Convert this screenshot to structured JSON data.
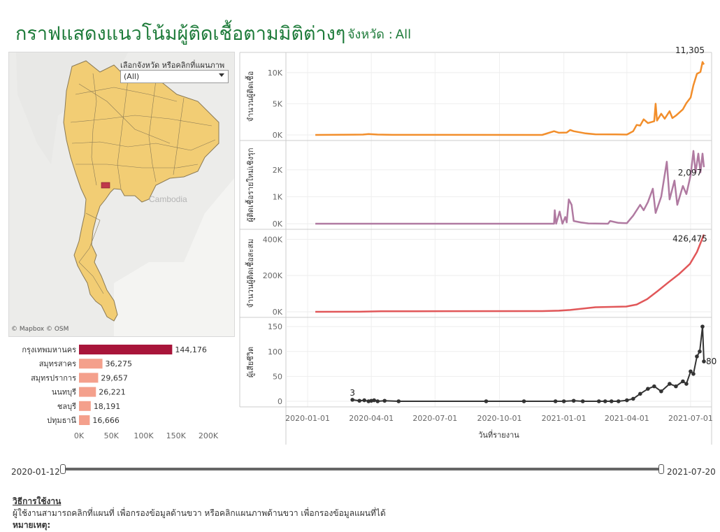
{
  "header": {
    "title": "กราฟแสดงแนวโน้มผู้ติดเชื้อตามมิติต่างๆ",
    "province_label": "จังหวัด :",
    "province_value": "All"
  },
  "map": {
    "filter_label": "เลือกจังหวัด หรือคลิกที่แผนภาพ",
    "filter_value": "(All)",
    "country_label": "Cambodia",
    "attribution": "© Mapbox  © OSM",
    "fill_color": "#f2cd74",
    "highlight_color": "#c0394b"
  },
  "colors": {
    "line_cases": "#f28e2b",
    "line_walkin": "#b07aa1",
    "line_cumulative": "#e15759",
    "line_deaths": "#333333",
    "bar_top": "#a8153a",
    "bar_other": "#f4a08c"
  },
  "chart_data": [
    {
      "type": "bar",
      "orientation": "horizontal",
      "categories": [
        "กรุงเทพมหานคร",
        "สมุทรสาคร",
        "สมุทรปราการ",
        "นนทบุรี",
        "ชลบุรี",
        "ปทุมธานี"
      ],
      "values": [
        144176,
        36275,
        29657,
        26221,
        18191,
        16666
      ],
      "value_labels": [
        "144,176",
        "36,275",
        "29,657",
        "26,221",
        "18,191",
        "16,666"
      ],
      "xlim": [
        0,
        200000
      ],
      "x_ticks": [
        0,
        50000,
        100000,
        150000,
        200000
      ],
      "x_tick_labels": [
        "0K",
        "50K",
        "100K",
        "150K",
        "200K"
      ]
    },
    {
      "type": "line",
      "ylabel": "จำนวนผู้ติดเชื้อ",
      "ylim": [
        0,
        12000
      ],
      "y_ticks": [
        0,
        5000,
        10000
      ],
      "y_tick_labels": [
        "0K",
        "5K",
        "10K"
      ],
      "end_label": "11,305",
      "points": [
        [
          "2020-01-12",
          0
        ],
        [
          "2020-03-20",
          60
        ],
        [
          "2020-03-28",
          140
        ],
        [
          "2020-04-10",
          60
        ],
        [
          "2020-05-01",
          10
        ],
        [
          "2020-12-01",
          5
        ],
        [
          "2020-12-18",
          600
        ],
        [
          "2020-12-25",
          350
        ],
        [
          "2021-01-05",
          380
        ],
        [
          "2021-01-10",
          800
        ],
        [
          "2021-01-15",
          600
        ],
        [
          "2021-02-01",
          250
        ],
        [
          "2021-02-15",
          100
        ],
        [
          "2021-03-15",
          80
        ],
        [
          "2021-04-01",
          60
        ],
        [
          "2021-04-10",
          600
        ],
        [
          "2021-04-15",
          1600
        ],
        [
          "2021-04-20",
          1500
        ],
        [
          "2021-04-25",
          2500
        ],
        [
          "2021-05-01",
          1900
        ],
        [
          "2021-05-10",
          2200
        ],
        [
          "2021-05-12",
          5000
        ],
        [
          "2021-05-14",
          2300
        ],
        [
          "2021-05-20",
          3400
        ],
        [
          "2021-05-25",
          2600
        ],
        [
          "2021-06-01",
          3800
        ],
        [
          "2021-06-05",
          2700
        ],
        [
          "2021-06-10",
          3100
        ],
        [
          "2021-06-20",
          4100
        ],
        [
          "2021-06-25",
          5100
        ],
        [
          "2021-07-01",
          6000
        ],
        [
          "2021-07-05",
          8000
        ],
        [
          "2021-07-10",
          9800
        ],
        [
          "2021-07-15",
          10100
        ],
        [
          "2021-07-18",
          11700
        ],
        [
          "2021-07-20",
          11305
        ]
      ]
    },
    {
      "type": "line",
      "ylabel": "ผู้ติดเชื้อรายใหม่เชิงรุก",
      "ylim": [
        0,
        2800
      ],
      "y_ticks": [
        0,
        1000,
        2000
      ],
      "y_tick_labels": [
        "0K",
        "1K",
        "2K"
      ],
      "end_label": "2,097",
      "points": [
        [
          "2020-01-12",
          0
        ],
        [
          "2020-12-18",
          0
        ],
        [
          "2020-12-19",
          500
        ],
        [
          "2020-12-21",
          0
        ],
        [
          "2020-12-26",
          450
        ],
        [
          "2020-12-30",
          0
        ],
        [
          "2021-01-03",
          250
        ],
        [
          "2021-01-05",
          50
        ],
        [
          "2021-01-08",
          900
        ],
        [
          "2021-01-12",
          700
        ],
        [
          "2021-01-15",
          100
        ],
        [
          "2021-01-25",
          50
        ],
        [
          "2021-02-05",
          10
        ],
        [
          "2021-03-05",
          0
        ],
        [
          "2021-03-08",
          100
        ],
        [
          "2021-03-20",
          30
        ],
        [
          "2021-04-01",
          20
        ],
        [
          "2021-04-10",
          300
        ],
        [
          "2021-04-20",
          700
        ],
        [
          "2021-04-25",
          500
        ],
        [
          "2021-05-01",
          800
        ],
        [
          "2021-05-08",
          1300
        ],
        [
          "2021-05-12",
          400
        ],
        [
          "2021-05-20",
          1000
        ],
        [
          "2021-05-28",
          2300
        ],
        [
          "2021-06-01",
          900
        ],
        [
          "2021-06-08",
          1600
        ],
        [
          "2021-06-12",
          700
        ],
        [
          "2021-06-20",
          1400
        ],
        [
          "2021-06-25",
          1100
        ],
        [
          "2021-07-01",
          1800
        ],
        [
          "2021-07-05",
          2700
        ],
        [
          "2021-07-08",
          1900
        ],
        [
          "2021-07-12",
          2600
        ],
        [
          "2021-07-15",
          1900
        ],
        [
          "2021-07-18",
          2600
        ],
        [
          "2021-07-20",
          2097
        ]
      ]
    },
    {
      "type": "line",
      "ylabel": "จำนวนผู้ติดเชื้อสะสม",
      "ylim": [
        0,
        440000
      ],
      "y_ticks": [
        0,
        200000,
        400000
      ],
      "y_tick_labels": [
        "0K",
        "200K",
        "400K"
      ],
      "end_label": "426,475",
      "points": [
        [
          "2020-01-12",
          0
        ],
        [
          "2020-03-15",
          500
        ],
        [
          "2020-04-15",
          2800
        ],
        [
          "2020-06-01",
          3100
        ],
        [
          "2020-12-01",
          4000
        ],
        [
          "2020-12-25",
          6000
        ],
        [
          "2021-01-10",
          10000
        ],
        [
          "2021-02-15",
          25000
        ],
        [
          "2021-03-31",
          29000
        ],
        [
          "2021-04-15",
          40000
        ],
        [
          "2021-04-30",
          70000
        ],
        [
          "2021-05-15",
          115000
        ],
        [
          "2021-05-31",
          165000
        ],
        [
          "2021-06-15",
          210000
        ],
        [
          "2021-06-30",
          264000
        ],
        [
          "2021-07-10",
          330000
        ],
        [
          "2021-07-20",
          426475
        ]
      ]
    },
    {
      "type": "line",
      "ylabel": "ผู้เสียชีวิต",
      "ylim": [
        0,
        160
      ],
      "y_ticks": [
        0,
        50,
        100,
        150
      ],
      "y_tick_labels": [
        "0",
        "50",
        "100",
        "150"
      ],
      "markers": true,
      "start_label": "3",
      "end_label": "80",
      "points": [
        [
          "2020-03-05",
          3
        ],
        [
          "2020-03-15",
          1
        ],
        [
          "2020-03-22",
          2
        ],
        [
          "2020-03-28",
          0
        ],
        [
          "2020-04-01",
          1
        ],
        [
          "2020-04-05",
          2
        ],
        [
          "2020-04-10",
          0
        ],
        [
          "2020-04-20",
          1
        ],
        [
          "2020-05-10",
          0
        ],
        [
          "2020-09-12",
          0
        ],
        [
          "2020-11-05",
          0
        ],
        [
          "2020-12-20",
          0
        ],
        [
          "2021-01-01",
          0
        ],
        [
          "2021-01-15",
          1
        ],
        [
          "2021-01-28",
          0
        ],
        [
          "2021-02-20",
          0
        ],
        [
          "2021-03-01",
          0
        ],
        [
          "2021-03-10",
          0
        ],
        [
          "2021-03-20",
          0
        ],
        [
          "2021-04-01",
          2
        ],
        [
          "2021-04-10",
          5
        ],
        [
          "2021-04-20",
          15
        ],
        [
          "2021-05-01",
          25
        ],
        [
          "2021-05-10",
          30
        ],
        [
          "2021-05-20",
          20
        ],
        [
          "2021-06-01",
          35
        ],
        [
          "2021-06-10",
          30
        ],
        [
          "2021-06-20",
          40
        ],
        [
          "2021-06-25",
          35
        ],
        [
          "2021-07-01",
          60
        ],
        [
          "2021-07-05",
          55
        ],
        [
          "2021-07-10",
          90
        ],
        [
          "2021-07-14",
          100
        ],
        [
          "2021-07-18",
          150
        ],
        [
          "2021-07-20",
          80
        ]
      ]
    }
  ],
  "time_axis": {
    "xlim": [
      "2019-12-01",
      "2021-07-31"
    ],
    "ticks": [
      "2020-01-01",
      "2020-04-01",
      "2020-07-01",
      "2020-10-01",
      "2021-01-01",
      "2021-04-01",
      "2021-07-01"
    ],
    "xlabel": "วันที่รายงาน"
  },
  "slider": {
    "start_label": "2020-01-12",
    "end_label": "2021-07-20",
    "range_start": "2020-01-12",
    "range_end": "2021-07-20"
  },
  "footer": {
    "usage_title": "วิธีการใช้งาน",
    "usage_text": "ผู้ใช้งานสามารถคลิกที่แผนที่ เพื่อกรองข้อมูลด้านขวา หรือคลิกแผนภาพด้านขวา เพื่อกรองข้อมูลแผนที่ได้",
    "note_title": "หมายเหตุ:"
  }
}
